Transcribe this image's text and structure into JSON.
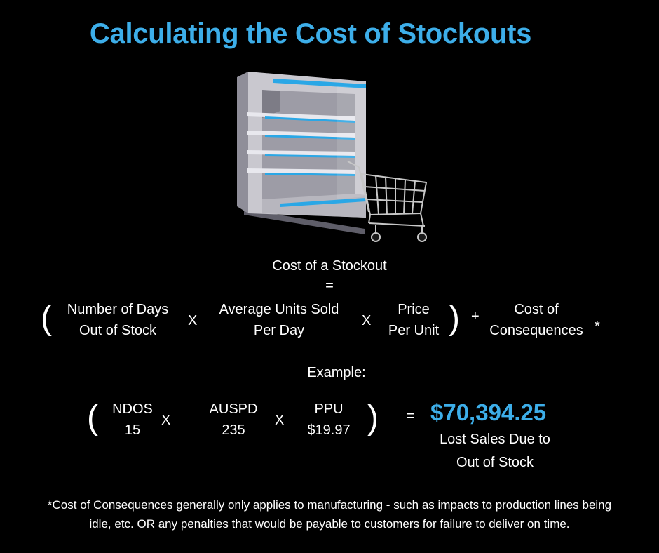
{
  "title": "Calculating the Cost of Stockouts",
  "illustration": {
    "name": "refrigerated display case with shopping cart",
    "colors": {
      "case_body": "#c9c8cf",
      "case_shade": "#8f8e99",
      "shelf_accent": "#2aa7e6",
      "cart": "#c7c7c7"
    }
  },
  "formula": {
    "heading": "Cost of a Stockout",
    "equals": "=",
    "open_paren": "(",
    "close_paren": ")",
    "term1_line1": "Number of Days",
    "term1_line2": "Out of Stock",
    "times1": "X",
    "term2_line1": "Average Units Sold",
    "term2_line2": "Per Day",
    "times2": "X",
    "term3_line1": "Price",
    "term3_line2": "Per Unit",
    "plus": "+",
    "term4_line1": "Cost of",
    "term4_line2": "Consequences",
    "asterisk": "*"
  },
  "example": {
    "heading": "Example:",
    "open_paren": "(",
    "close_paren": ")",
    "v1_label": "NDOS",
    "v1_value": "15",
    "times1": "X",
    "v2_label": "AUSPD",
    "v2_value": "235",
    "times2": "X",
    "v3_label": "PPU",
    "v3_value": "$19.97",
    "equals": "=",
    "result": "$70,394.25",
    "result_caption_line1": "Lost Sales Due to",
    "result_caption_line2": "Out of Stock"
  },
  "footnote_line1": "*Cost of Consequences generally only applies to manufacturing - such as impacts to production lines being",
  "footnote_line2": "idle, etc. OR any penalties that would be payable to customers for failure to deliver on time.",
  "accent_color": "#3daee9"
}
